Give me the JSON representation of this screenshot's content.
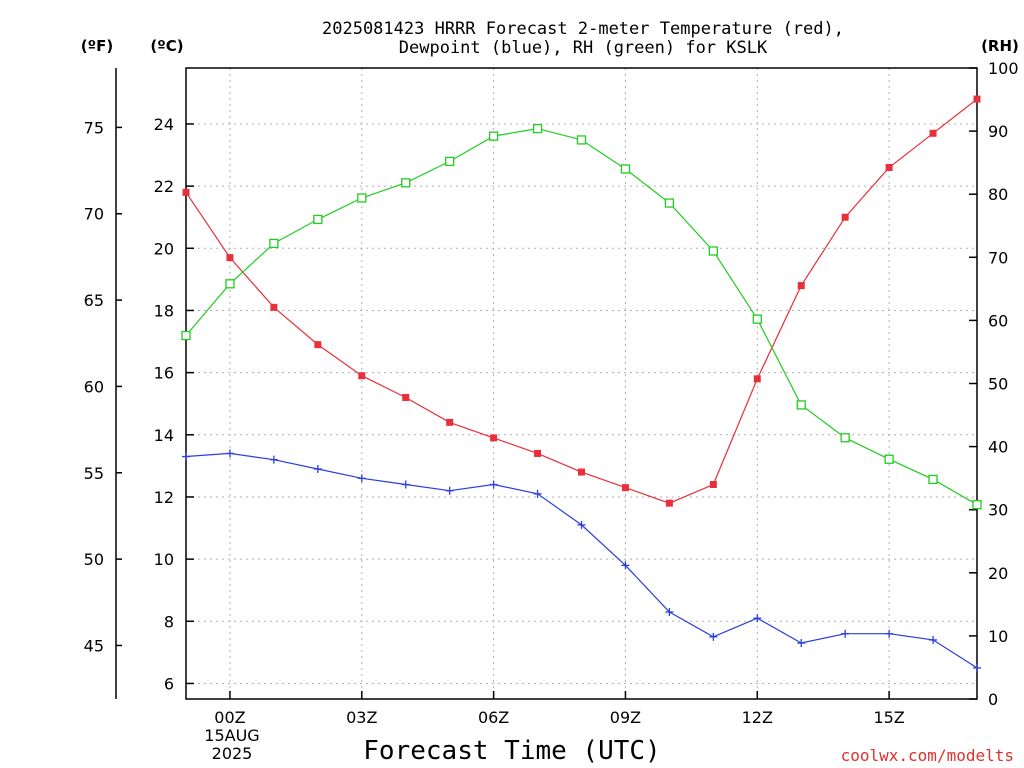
{
  "chart_data": {
    "type": "line",
    "title_line1": "2025081423 HRRR Forecast 2-meter Temperature (red),",
    "title_line2": "Dewpoint (blue), RH (green) for KSLK",
    "xlabel": "Forecast Time (UTC)",
    "credit": "coolwx.com/modelts",
    "units": {
      "fahrenheit": "(ºF)",
      "celsius": "(ºC)",
      "rh": "(RH)"
    },
    "x_hours": [
      -1,
      0,
      1,
      2,
      3,
      4,
      5,
      6,
      7,
      8,
      9,
      10,
      11,
      12,
      13,
      14,
      15,
      16,
      17
    ],
    "xlim": [
      -1,
      17
    ],
    "x_ticks": [
      {
        "hour": 0,
        "label": "00Z"
      },
      {
        "hour": 3,
        "label": "03Z"
      },
      {
        "hour": 6,
        "label": "06Z"
      },
      {
        "hour": 9,
        "label": "09Z"
      },
      {
        "hour": 12,
        "label": "12Z"
      },
      {
        "hour": 15,
        "label": "15Z"
      }
    ],
    "date_label_day": "15AUG",
    "date_label_year": "2025",
    "celsius_axis": {
      "range": [
        5.5,
        25.8
      ],
      "ticks": [
        6,
        8,
        10,
        12,
        14,
        16,
        18,
        20,
        22,
        24
      ]
    },
    "fahrenheit_ticks": [
      45,
      50,
      55,
      60,
      65,
      70,
      75
    ],
    "rh_axis": {
      "range": [
        0,
        100
      ],
      "ticks": [
        0,
        10,
        20,
        30,
        40,
        50,
        60,
        70,
        80,
        90,
        100
      ]
    },
    "grid": true,
    "series": [
      {
        "name": "2-meter Temperature",
        "color": "#e8303a",
        "marker": "filled-square",
        "axis": "celsius",
        "values": [
          21.8,
          19.7,
          18.1,
          16.9,
          15.9,
          15.2,
          14.4,
          13.9,
          13.4,
          12.8,
          12.3,
          11.8,
          12.4,
          15.8,
          18.8,
          21.0,
          22.6,
          23.7,
          24.8
        ]
      },
      {
        "name": "Dewpoint",
        "color": "#2a3ee0",
        "marker": "plus",
        "axis": "celsius",
        "values": [
          13.3,
          13.4,
          13.2,
          12.9,
          12.6,
          12.4,
          12.2,
          12.4,
          12.1,
          11.1,
          9.8,
          8.3,
          7.5,
          8.1,
          7.3,
          7.6,
          7.6,
          7.4,
          6.5
        ]
      },
      {
        "name": "RH",
        "color": "#22cc22",
        "marker": "open-square",
        "axis": "rh",
        "values": [
          57.6,
          65.8,
          72.2,
          76.0,
          79.4,
          81.8,
          85.2,
          89.2,
          90.4,
          88.6,
          84.0,
          78.6,
          71.0,
          60.2,
          46.6,
          41.4,
          38.0,
          34.8,
          30.8
        ]
      }
    ]
  }
}
